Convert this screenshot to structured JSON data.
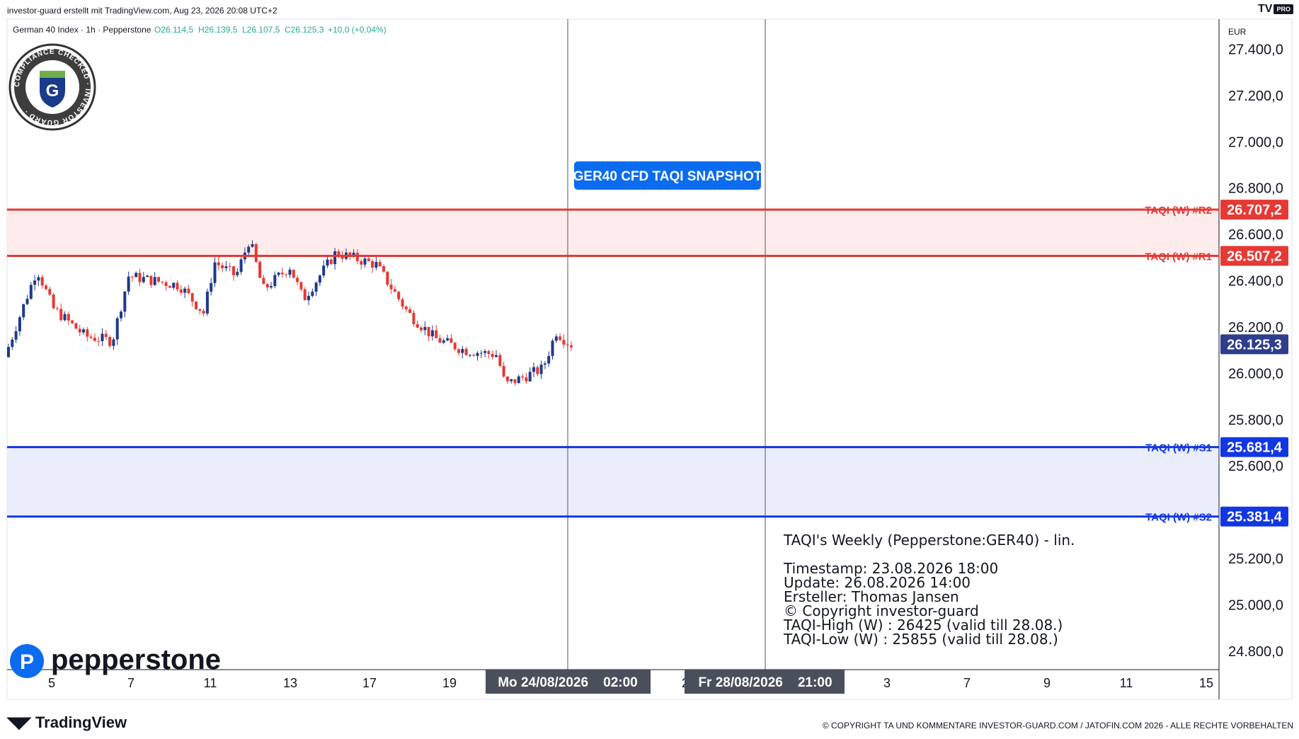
{
  "header": {
    "creator_line": "investor-guard erstellt mit TradingView.com, Aug 23, 2026 20:08 UTC+2",
    "symbol_line": "German 40 Index · 1h · Pepperstone",
    "ohlc": {
      "open": "O26.114,5",
      "high": "H26.139,5",
      "low": "L26.107,5",
      "close": "C26.125,3",
      "change": "+10,0 (+0,04%)"
    },
    "brand": "TV",
    "brand_badge": "PRO"
  },
  "badge": {
    "ring_text": "COMPLIANCE CHECKED · INVESTOR GUARD ·",
    "center_letter": "G"
  },
  "snapshot_label": "GER40 CFD TAQI SNAPSHOT",
  "currency": "EUR",
  "broker_logo": "pepperstone",
  "levels": [
    {
      "name": "TAQI (W) #R2",
      "value_text": "26.707,2",
      "value": 26707.2,
      "color": "#e53935"
    },
    {
      "name": "TAQI (W) #R1",
      "value_text": "26.507,2",
      "value": 26507.2,
      "color": "#e53935"
    },
    {
      "name": "TAQI (W) #S1",
      "value_text": "25.681,4",
      "value": 25681.4,
      "color": "#1237e0"
    },
    {
      "name": "TAQI (W) #S2",
      "value_text": "25.381,4",
      "value": 25381.4,
      "color": "#1237e0"
    }
  ],
  "last_price": {
    "text": "26.125,3",
    "value": 26125.3,
    "color": "#2c3e8c"
  },
  "vertical_markers": [
    {
      "label": "Mo 24/08/2026    02:00"
    },
    {
      "label": "Fr 28/08/2026    21:00"
    }
  ],
  "info_box": {
    "title": "TAQI's Weekly (Pepperstone:GER40) - lin.",
    "lines": [
      "Timestamp: 23.08.2026 18:00",
      "Update: 26.08.2026 14:00",
      "Ersteller: Thomas Jansen",
      "© Copyright investor-guard",
      "TAQI-High (W) : 26425 (valid till 28.08.)",
      "TAQI-Low (W) : 25855 (valid till 28.08.)"
    ]
  },
  "footer": {
    "tv_logo": "TradingView",
    "copyright": "© COPYRIGHT TA UND KOMMENTARE INVESTOR-GUARD.COM / JATOFIN.COM 2026 - ALLE RECHTE VORBEHALTEN"
  },
  "colors": {
    "bull": "#1e3a8a",
    "bear": "#e53935",
    "resistance_zone": "#fdeceb",
    "support_zone": "#eaeefc",
    "snapshot_bg": "#0b6cf0"
  },
  "chart_data": {
    "type": "candlestick",
    "instrument": "German 40 Index",
    "timeframe": "1h",
    "y_axis_ticks": [
      "27.400,0",
      "27.200,0",
      "27.000,0",
      "26.800,0",
      "26.600,0",
      "26.400,0",
      "26.200,0",
      "26.000,0",
      "25.800,0",
      "25.600,0",
      "25.200,0",
      "25.000,0",
      "24.800,0"
    ],
    "ylim": [
      24720,
      27530
    ],
    "x_axis_ticks": [
      "5",
      "7",
      "11",
      "13",
      "17",
      "19",
      "2",
      "3",
      "7",
      "9",
      "11",
      "15"
    ],
    "waypoints": [
      {
        "day": 4.0,
        "price": 26070
      },
      {
        "day": 5.2,
        "price": 26450
      },
      {
        "day": 5.8,
        "price": 26280
      },
      {
        "day": 7.0,
        "price": 26160
      },
      {
        "day": 8.0,
        "price": 26140
      },
      {
        "day": 8.6,
        "price": 26420
      },
      {
        "day": 10.5,
        "price": 26380
      },
      {
        "day": 11.4,
        "price": 26260
      },
      {
        "day": 11.8,
        "price": 26480
      },
      {
        "day": 12.6,
        "price": 26420
      },
      {
        "day": 13.1,
        "price": 26580
      },
      {
        "day": 13.6,
        "price": 26360
      },
      {
        "day": 14.6,
        "price": 26460
      },
      {
        "day": 15.1,
        "price": 26320
      },
      {
        "day": 16.3,
        "price": 26520
      },
      {
        "day": 17.8,
        "price": 26470
      },
      {
        "day": 19.0,
        "price": 26260
      },
      {
        "day": 20.0,
        "price": 26150
      },
      {
        "day": 21.1,
        "price": 26100
      },
      {
        "day": 22.3,
        "price": 26080
      },
      {
        "day": 22.6,
        "price": 25950
      },
      {
        "day": 24.0,
        "price": 26020
      },
      {
        "day": 24.5,
        "price": 26180
      },
      {
        "day": 25.0,
        "price": 26125
      }
    ]
  }
}
